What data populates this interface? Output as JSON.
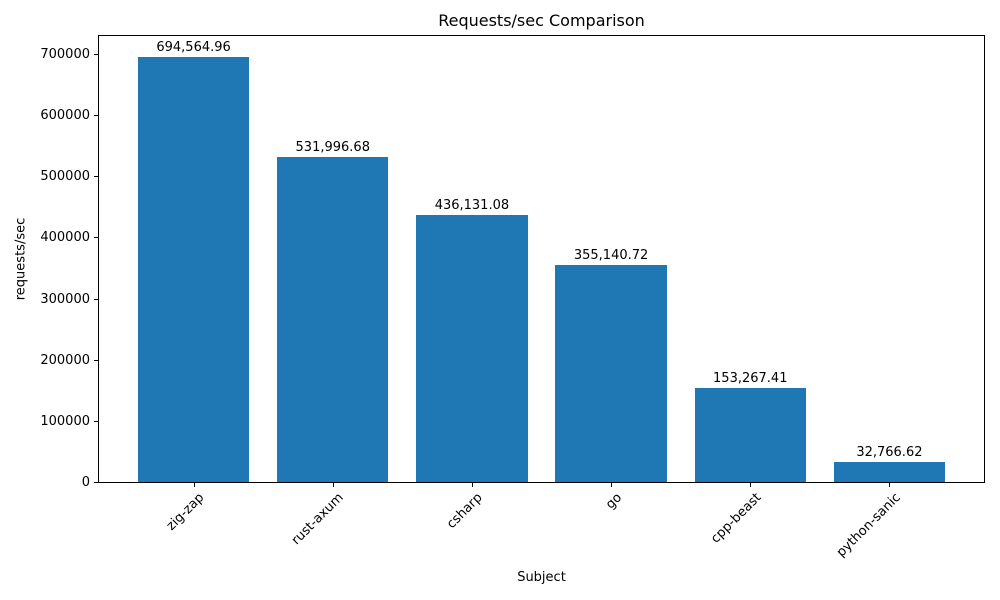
{
  "chart_data": {
    "type": "bar",
    "title": "Requests/sec Comparison",
    "xlabel": "Subject",
    "ylabel": "requests/sec",
    "categories": [
      "zig-zap",
      "rust-axum",
      "csharp",
      "go",
      "cpp-beast",
      "python-sanic"
    ],
    "values": [
      694564.96,
      531996.68,
      436131.08,
      355140.72,
      153267.41,
      32766.62
    ],
    "value_labels": [
      "694,564.96",
      "531,996.68",
      "436,131.08",
      "355,140.72",
      "153,267.41",
      "32,766.62"
    ],
    "yticks": [
      0,
      100000,
      200000,
      300000,
      400000,
      500000,
      600000,
      700000
    ],
    "ytick_labels": [
      "0",
      "100000",
      "200000",
      "300000",
      "400000",
      "500000",
      "600000",
      "700000"
    ],
    "ylim": [
      0,
      729293
    ],
    "bar_color": "#1f77b4",
    "text_color": "#000000",
    "grid": false,
    "legend_position": "none"
  }
}
